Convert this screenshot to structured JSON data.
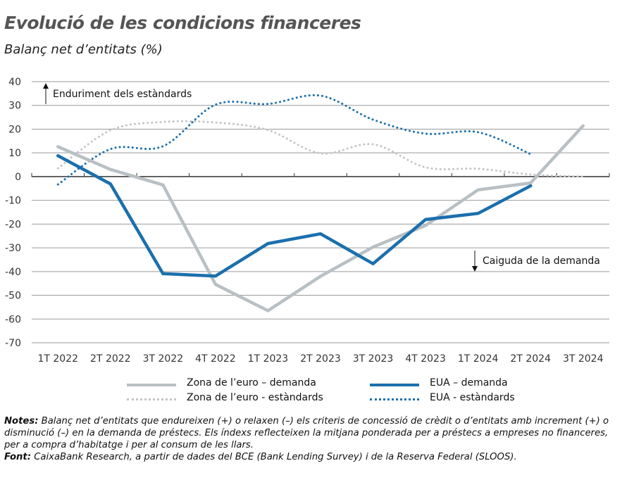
{
  "title": "Evolució de les condicions financeres",
  "subtitle": "Balanç net d’entitats (%)",
  "chart_data": {
    "type": "line",
    "title": "Evolució de les condicions financeres",
    "subtitle": "Balanç net d’entitats (%)",
    "categories": [
      "1T 2022",
      "2T 2022",
      "3T 2022",
      "4T 2022",
      "1T 2023",
      "2T 2023",
      "3T 2023",
      "4T 2023",
      "1T 2024",
      "2T 2024",
      "3T 2024"
    ],
    "ylim": [
      -70,
      40
    ],
    "yticks": [
      40,
      30,
      20,
      10,
      0,
      -10,
      -20,
      -30,
      -40,
      -50,
      -60,
      -70
    ],
    "grid": true,
    "legend_position": "bottom",
    "series": [
      {
        "name": "Zona de l’euro – demanda",
        "color": "#b9c0c4",
        "style": "solid",
        "values": [
          12.6,
          3,
          -3.5,
          -45.4,
          -56.5,
          -42,
          -29.7,
          -20.6,
          -5.6,
          -2.7,
          21.4
        ]
      },
      {
        "name": "EUA – demanda",
        "color": "#1b6fad",
        "style": "solid",
        "values": [
          8.8,
          -3.1,
          -40.9,
          -41.9,
          -28.2,
          -24.1,
          -36.7,
          -18.1,
          -15.5,
          -3.9,
          null
        ]
      },
      {
        "name": "Zona de l’euro - estàndards",
        "color": "#c2c6c9",
        "style": "dotted",
        "values": [
          3.5,
          19.5,
          23,
          22.8,
          19.6,
          9.8,
          13.6,
          3.9,
          3.3,
          0.9,
          0
        ]
      },
      {
        "name": "EUA - estàndards",
        "color": "#1b6fad",
        "style": "dotted",
        "values": [
          -3.3,
          11.6,
          12.8,
          30.3,
          30.6,
          34.1,
          24,
          18.1,
          18.7,
          9.5,
          null
        ]
      }
    ],
    "annotations": [
      "Enduriment dels estàndards",
      "Caiguda de la demanda"
    ]
  },
  "notes": {
    "notes_label": "Notes:",
    "notes_text": " Balanç net d’entitats que endureixen (+) o relaxen (–) els criteris de concessió de crèdit o d’entitats amb increment (+) o disminució (–) en la demanda de préstecs. Els índexs reflecteixen la mitjana ponderada per a préstecs a empreses no financeres, per a compra d’habitatge i per al consum de les llars.",
    "source_label": "Font:",
    "source_text": " CaixaBank Research, a partir de dades del BCE (Bank Lending Survey) i de la Reserva Federal (SLOOS)."
  }
}
